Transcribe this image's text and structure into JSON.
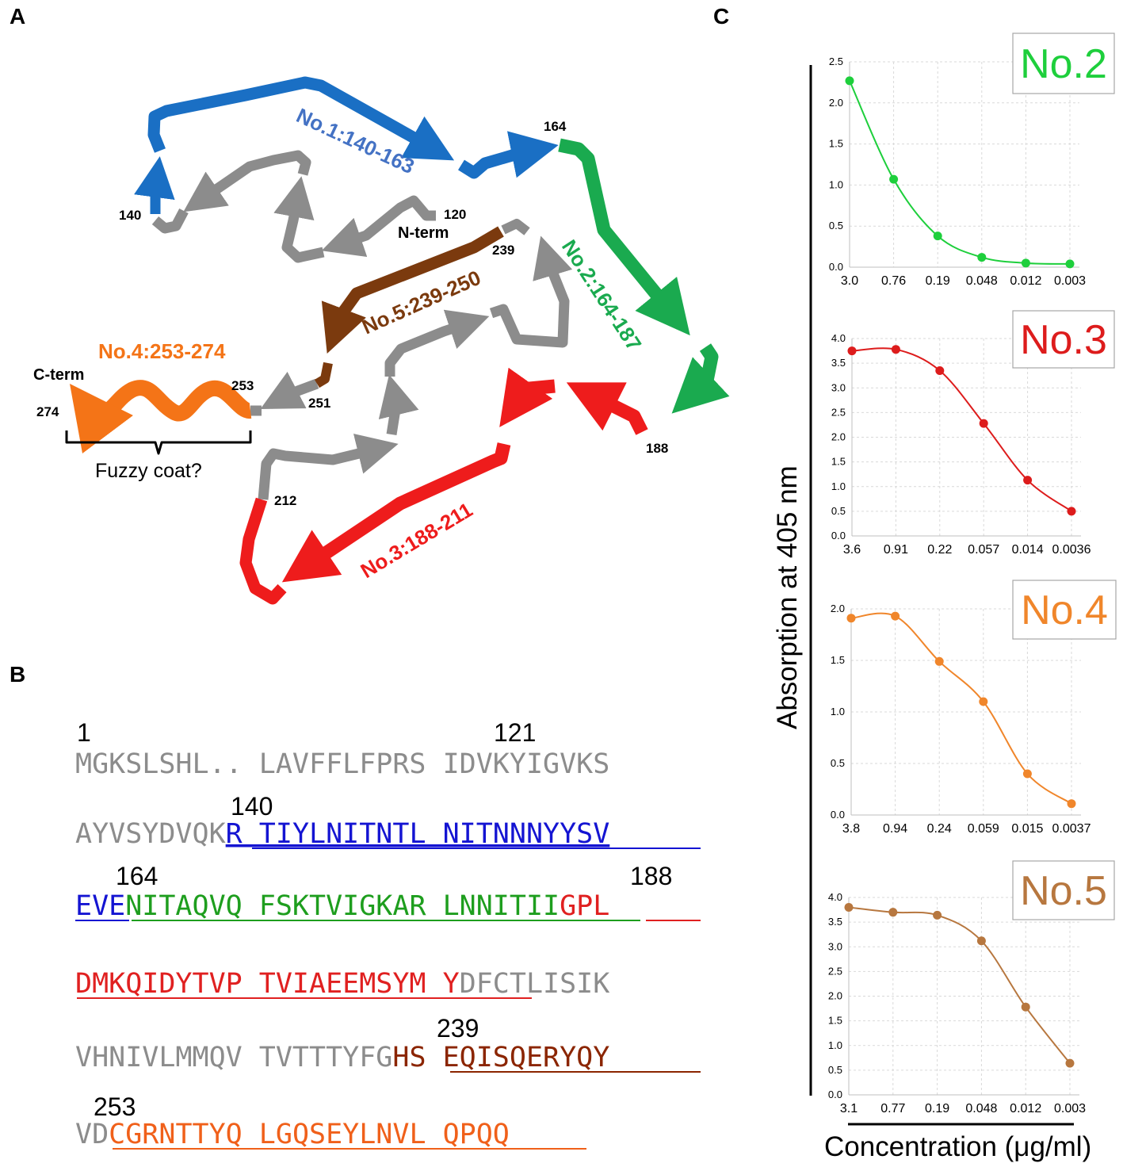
{
  "panels": {
    "a": "A",
    "b": "B",
    "c": "C"
  },
  "colors": {
    "gray": "#8c8c8c",
    "blue": "#1a6fc4",
    "green": "#1aaa4f",
    "red": "#ee1c1c",
    "brown": "#7b3a0e",
    "orange": "#f47417",
    "seq_blue": "#1414d2",
    "seq_green": "#1e9e1e",
    "seq_red": "#e02020",
    "seq_brown": "#8b2500",
    "seq_orange": "#f0601a"
  },
  "panel_a": {
    "segments": {
      "no1": "No.1:140-163",
      "no2": "No.2:164-187",
      "no3": "No.3:188-211",
      "no4": "No.4:253-274",
      "no5": "No.5:239-250"
    },
    "residues": {
      "r164": "164",
      "r140": "140",
      "r120": "120",
      "r239": "239",
      "r253": "253",
      "r251": "251",
      "r274": "274",
      "r188": "188",
      "r212": "212"
    },
    "n_term": "N-term",
    "c_term": "C-term",
    "fuzzy_coat": "Fuzzy coat?"
  },
  "panel_b": {
    "numbers": {
      "n1": "1",
      "n121": "121",
      "n140": "140",
      "n164": "164",
      "n188": "188",
      "n239": "239",
      "n253": "253"
    },
    "lines": [
      [
        {
          "t": "MGKSLSHL..",
          "c": "gray"
        },
        {
          "t": " LAVFFLFPRS",
          "c": "gray"
        },
        {
          "t": " IDVKYIGVKS",
          "c": "gray"
        }
      ],
      [
        {
          "t": "AYVSYDVQK",
          "c": "gray"
        },
        {
          "t": "R TIYLNITNTL NITNNNYYSV",
          "c": "blue"
        }
      ],
      [
        {
          "t": "EVE",
          "c": "blue"
        },
        {
          "t": "NITAQVQ FSKTVIGKAR LNNITII",
          "c": "green"
        },
        {
          "t": "GPL",
          "c": "red"
        }
      ],
      [
        {
          "t": "DMKQIDYTVP TVIAEEMSYM Y",
          "c": "red"
        },
        {
          "t": "DFCTLISIK",
          "c": "gray"
        }
      ],
      [
        {
          "t": "VHNIVLMMQV TVTTTYFG",
          "c": "gray"
        },
        {
          "t": "HS EQISQERYQY",
          "c": "brown"
        }
      ],
      [
        {
          "t": "VD",
          "c": "gray"
        },
        {
          "t": "CGRNTTYQ LGQSEYLNVL QPQQ",
          "c": "orange"
        }
      ]
    ]
  },
  "panel_c": {
    "y_axis_label": "Absorption at 405 nm",
    "x_axis_label": "Concentration (μg/ml)"
  },
  "chart_data": [
    {
      "type": "line",
      "title": "No.2",
      "color": "#1ecf3c",
      "categories": [
        "3.0",
        "0.76",
        "0.19",
        "0.048",
        "0.012",
        "0.003"
      ],
      "values": [
        2.27,
        1.07,
        0.38,
        0.12,
        0.05,
        0.04
      ],
      "ylim": [
        0,
        2.5
      ],
      "yticks": [
        "0.0",
        "0.5",
        "1.0",
        "1.5",
        "2.0",
        "2.5"
      ],
      "grid": true
    },
    {
      "type": "line",
      "title": "No.3",
      "color": "#dd1c1c",
      "categories": [
        "3.6",
        "0.91",
        "0.22",
        "0.057",
        "0.014",
        "0.0036"
      ],
      "values": [
        3.75,
        3.78,
        3.35,
        2.28,
        1.13,
        0.5
      ],
      "ylim": [
        0,
        4.0
      ],
      "yticks": [
        "0.0",
        "0.5",
        "1.0",
        "1.5",
        "2.0",
        "2.5",
        "3.0",
        "3.5",
        "4.0"
      ],
      "grid": true
    },
    {
      "type": "line",
      "title": "No.4",
      "color": "#f0862b",
      "categories": [
        "3.8",
        "0.94",
        "0.24",
        "0.059",
        "0.015",
        "0.0037"
      ],
      "values": [
        1.91,
        1.93,
        1.49,
        1.1,
        0.4,
        0.11
      ],
      "ylim": [
        0,
        2.0
      ],
      "yticks": [
        "0.0",
        "0.5",
        "1.0",
        "1.5",
        "2.0"
      ],
      "grid": true
    },
    {
      "type": "line",
      "title": "No.5",
      "color": "#b7773f",
      "categories": [
        "3.1",
        "0.77",
        "0.19",
        "0.048",
        "0.012",
        "0.003"
      ],
      "values": [
        3.8,
        3.7,
        3.64,
        3.12,
        1.78,
        0.64
      ],
      "ylim": [
        0,
        4.0
      ],
      "yticks": [
        "0.0",
        "0.5",
        "1.0",
        "1.5",
        "2.0",
        "2.5",
        "3.0",
        "3.5",
        "4.0"
      ],
      "grid": true
    }
  ]
}
